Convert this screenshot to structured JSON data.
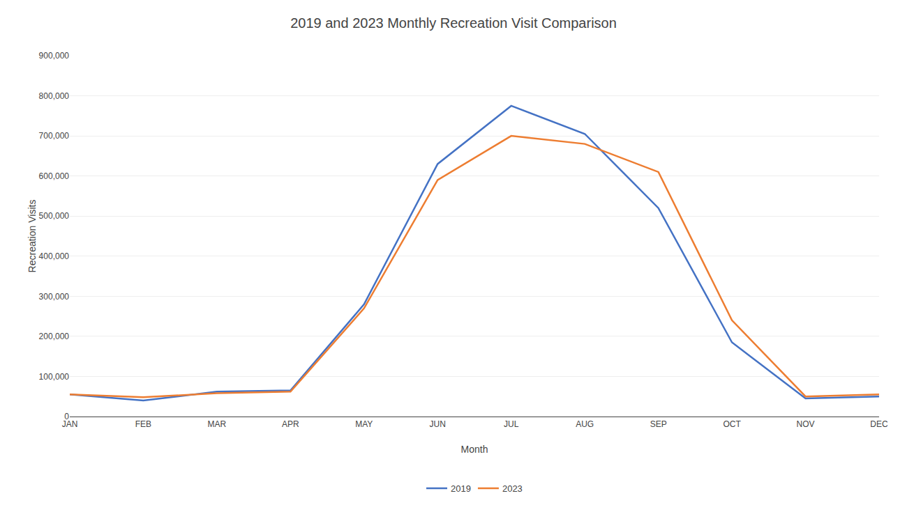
{
  "chart_data": {
    "type": "line",
    "title": "2019 and 2023 Monthly Recreation Visit Comparison",
    "xlabel": "Month",
    "ylabel": "Recreation Visits",
    "categories": [
      "JAN",
      "FEB",
      "MAR",
      "APR",
      "MAY",
      "JUN",
      "JUL",
      "AUG",
      "SEP",
      "OCT",
      "NOV",
      "DEC"
    ],
    "series": [
      {
        "name": "2019",
        "color": "#4472C4",
        "values": [
          55000,
          40000,
          62000,
          65000,
          280000,
          630000,
          775000,
          705000,
          520000,
          185000,
          45000,
          50000
        ]
      },
      {
        "name": "2023",
        "color": "#ED7D31",
        "values": [
          55000,
          48000,
          58000,
          62000,
          270000,
          590000,
          700000,
          680000,
          610000,
          240000,
          50000,
          55000
        ]
      }
    ],
    "ylim": [
      0,
      900000
    ],
    "yticks": [
      0,
      {
        "value": 100000,
        "label": "100,000"
      },
      {
        "value": 200000,
        "label": "200,000"
      },
      {
        "value": 300000,
        "label": "300,000"
      },
      {
        "value": 400000,
        "label": "400,000"
      },
      {
        "value": 500000,
        "label": "500,000"
      },
      {
        "value": 600000,
        "label": "600,000"
      },
      {
        "value": 700000,
        "label": "700,000"
      },
      {
        "value": 800000,
        "label": "800,000"
      },
      {
        "value": 900000,
        "label": "900,000"
      }
    ],
    "grid": true,
    "legend": "bottom"
  }
}
